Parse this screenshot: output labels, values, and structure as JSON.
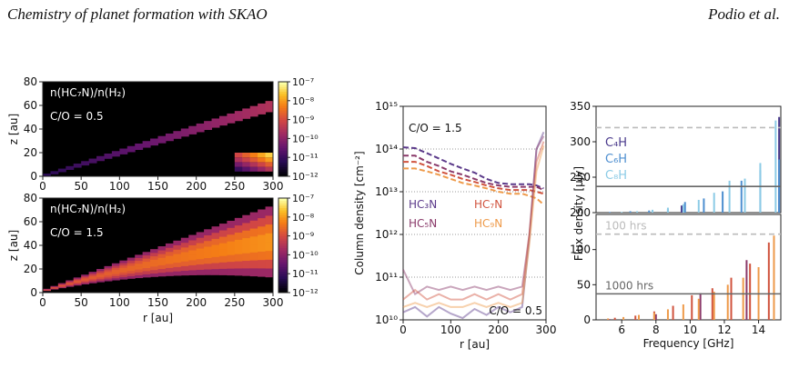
{
  "header": {
    "left": "Chemistry of planet formation with SKAO",
    "right": "Podio et al."
  },
  "colors": {
    "map_bg": "#000000",
    "inferno_low": "#1b0c41",
    "inferno_high": "#fbe46a",
    "hc3n": "#5b3a8a",
    "hc5n": "#8a3a6a",
    "hc7n": "#d0533e",
    "hc9n": "#ee9a4a",
    "c4h": "#4a3a8c",
    "c6h": "#4e8fd0",
    "c8h": "#8ccbe6"
  },
  "chart_data": [
    {
      "type": "heatmap",
      "panel": "top-left",
      "label": "n(HC₇N)/n(H₂)",
      "annotation": "C/O = 0.5",
      "xlabel": "",
      "ylabel": "z [au]",
      "xlim": [
        0,
        300
      ],
      "ylim": [
        0,
        80
      ],
      "xticks": [
        "0",
        "50",
        "100",
        "150",
        "200",
        "250",
        "300"
      ],
      "yticks": [
        "0",
        "20",
        "40",
        "60",
        "80"
      ],
      "colorbar": {
        "scale": "log",
        "range": [
          1e-12,
          1e-07
        ],
        "ticks": [
          "10⁻¹²",
          "10⁻¹¹",
          "10⁻¹⁰",
          "10⁻⁹",
          "10⁻⁸",
          "10⁻⁷"
        ]
      }
    },
    {
      "type": "heatmap",
      "panel": "bottom-left",
      "label": "n(HC₇N)/n(H₂)",
      "annotation": "C/O = 1.5",
      "xlabel": "r [au]",
      "ylabel": "z [au]",
      "xlim": [
        0,
        300
      ],
      "ylim": [
        0,
        80
      ],
      "xticks": [
        "0",
        "50",
        "100",
        "150",
        "200",
        "250",
        "300"
      ],
      "yticks": [
        "0",
        "20",
        "40",
        "60",
        "80"
      ],
      "colorbar": {
        "scale": "log",
        "range": [
          1e-12,
          1e-07
        ],
        "ticks": [
          "10⁻¹²",
          "10⁻¹¹",
          "10⁻¹⁰",
          "10⁻⁹",
          "10⁻⁸",
          "10⁻⁷"
        ]
      }
    },
    {
      "type": "line",
      "panel": "middle",
      "xlabel": "r [au]",
      "ylabel": "Column density [cm⁻²]",
      "xlim": [
        0,
        300
      ],
      "ylim": [
        10000000000.0,
        1000000000000000.0
      ],
      "yscale": "log",
      "xticks": [
        "0",
        "100",
        "200",
        "300"
      ],
      "yticks": [
        "10¹⁰",
        "10¹¹",
        "10¹²",
        "10¹³",
        "10¹⁴",
        "10¹⁵"
      ],
      "annotations": [
        "C/O = 1.5",
        "C/O = 0.5"
      ],
      "legend": [
        "HC₃N",
        "HC₇N",
        "HC₅N",
        "HC₉N"
      ],
      "x": [
        0,
        25,
        50,
        75,
        100,
        125,
        150,
        175,
        200,
        225,
        250,
        265,
        280,
        295
      ],
      "series": [
        {
          "name": "HC₃N",
          "style": "dashed",
          "values": [
            110000000000000.0,
            105000000000000.0,
            80000000000000.0,
            60000000000000.0,
            45000000000000.0,
            35000000000000.0,
            28000000000000.0,
            20000000000000.0,
            16000000000000.0,
            15000000000000.0,
            15000000000000.0,
            15000000000000.0,
            14000000000000.0,
            12000000000000.0
          ]
        },
        {
          "name": "HC₅N",
          "style": "dashed",
          "values": [
            70000000000000.0,
            70000000000000.0,
            50000000000000.0,
            40000000000000.0,
            30000000000000.0,
            25000000000000.0,
            20000000000000.0,
            16000000000000.0,
            14000000000000.0,
            13000000000000.0,
            13000000000000.0,
            13000000000000.0,
            13000000000000.0,
            11000000000000.0
          ]
        },
        {
          "name": "HC₇N",
          "style": "dashed",
          "values": [
            50000000000000.0,
            50000000000000.0,
            40000000000000.0,
            30000000000000.0,
            25000000000000.0,
            20000000000000.0,
            17000000000000.0,
            14000000000000.0,
            12000000000000.0,
            11000000000000.0,
            11000000000000.0,
            11000000000000.0,
            10000000000000.0,
            9000000000000.0
          ]
        },
        {
          "name": "HC₉N",
          "style": "dashed",
          "values": [
            35000000000000.0,
            35000000000000.0,
            30000000000000.0,
            25000000000000.0,
            20000000000000.0,
            16000000000000.0,
            14000000000000.0,
            12000000000000.0,
            10000000000000.0,
            9000000000000.0,
            9000000000000.0,
            8000000000000.0,
            7000000000000.0,
            5000000000000.0
          ]
        },
        {
          "name": "HC₃N",
          "style": "solid",
          "values": [
            15000000000.0,
            20000000000.0,
            12000000000.0,
            20000000000.0,
            14000000000.0,
            11000000000.0,
            18000000000.0,
            13000000000.0,
            20000000000.0,
            15000000000.0,
            20000000000.0,
            800000000000.0,
            100000000000000.0,
            250000000000000.0
          ]
        },
        {
          "name": "HC₅N",
          "style": "solid",
          "values": [
            150000000000.0,
            40000000000.0,
            60000000000.0,
            50000000000.0,
            60000000000.0,
            50000000000.0,
            60000000000.0,
            50000000000.0,
            60000000000.0,
            50000000000.0,
            60000000000.0,
            1000000000000.0,
            100000000000000.0,
            200000000000000.0
          ]
        },
        {
          "name": "HC₇N",
          "style": "solid",
          "values": [
            30000000000.0,
            50000000000.0,
            30000000000.0,
            40000000000.0,
            30000000000.0,
            30000000000.0,
            40000000000.0,
            30000000000.0,
            40000000000.0,
            30000000000.0,
            40000000000.0,
            1000000000000.0,
            50000000000000.0,
            150000000000000.0
          ]
        },
        {
          "name": "HC₉N",
          "style": "solid",
          "values": [
            20000000000.0,
            25000000000.0,
            20000000000.0,
            25000000000.0,
            20000000000.0,
            20000000000.0,
            25000000000.0,
            20000000000.0,
            25000000000.0,
            20000000000.0,
            25000000000.0,
            600000000000.0,
            30000000000000.0,
            120000000000000.0
          ]
        }
      ]
    },
    {
      "type": "bar",
      "panel": "top-right",
      "ylabel": "Flux density [μJy]",
      "xlim": [
        4.5,
        15.3
      ],
      "ylim": [
        200,
        350
      ],
      "yticks": [
        "200",
        "250",
        "300",
        "350"
      ],
      "legend": [
        "C₄H",
        "C₆H",
        "C₈H"
      ],
      "hlines": [
        320,
        237
      ],
      "series": [
        {
          "name": "C₄H",
          "x": [
            9.5,
            15.2
          ],
          "values": [
            210,
            335
          ]
        },
        {
          "name": "C₆H",
          "x": [
            5.3,
            6.5,
            7.6,
            8.7,
            9.7,
            10.8,
            11.9,
            13.0,
            14.1,
            15.2
          ],
          "values": [
            201,
            202,
            203,
            205,
            215,
            220,
            230,
            245,
            260,
            275
          ]
        },
        {
          "name": "C₈H",
          "x": [
            6.0,
            6.9,
            7.8,
            8.7,
            9.6,
            10.5,
            11.4,
            12.3,
            13.2,
            14.1,
            15.0
          ],
          "values": [
            201,
            202,
            204,
            207,
            212,
            218,
            228,
            245,
            248,
            270,
            330
          ]
        }
      ]
    },
    {
      "type": "bar",
      "panel": "bottom-right",
      "xlabel": "Frequency [GHz]",
      "ylabel": "Flux density [μJy]",
      "xlim": [
        4.5,
        15.3
      ],
      "ylim": [
        0,
        150
      ],
      "xticks": [
        "6",
        "8",
        "10",
        "12",
        "14"
      ],
      "yticks": [
        "0",
        "50",
        "100"
      ],
      "hlines": [
        {
          "value": 122,
          "label": "100 hrs"
        },
        {
          "value": 37,
          "label": "1000 hrs"
        }
      ],
      "series": [
        {
          "name": "HC₅N",
          "x": [
            5.3,
            8.0,
            10.6,
            13.3
          ],
          "values": [
            1,
            8,
            38,
            85
          ]
        },
        {
          "name": "HC₇N",
          "x": [
            5.6,
            6.8,
            7.9,
            9.0,
            10.1,
            11.3,
            12.4,
            13.5,
            14.6
          ],
          "values": [
            3,
            6,
            12,
            20,
            35,
            45,
            60,
            80,
            110
          ]
        },
        {
          "name": "HC₉N",
          "x": [
            5.2,
            6.1,
            7.0,
            7.9,
            8.7,
            9.6,
            10.5,
            11.4,
            12.2,
            13.1,
            14.0,
            14.9
          ],
          "values": [
            2,
            4,
            7,
            10,
            15,
            22,
            30,
            40,
            50,
            60,
            75,
            120
          ]
        }
      ]
    }
  ]
}
